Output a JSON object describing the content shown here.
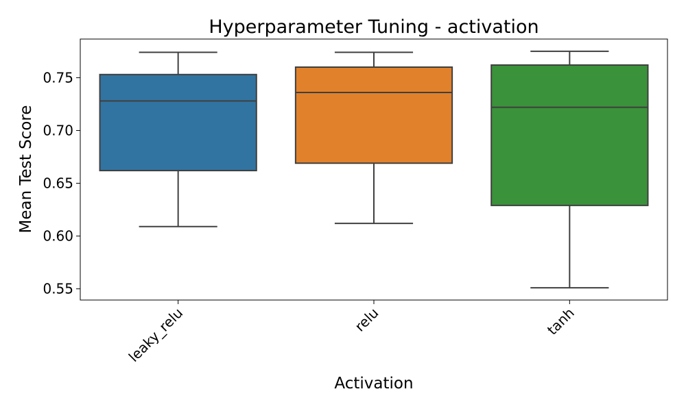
{
  "chart_data": {
    "type": "boxplot",
    "title": "Hyperparameter Tuning - activation",
    "xlabel": "Activation",
    "ylabel": "Mean Test Score",
    "categories": [
      "leaky_relu",
      "relu",
      "tanh"
    ],
    "boxes": [
      {
        "category": "leaky_relu",
        "whisker_low": 0.609,
        "q1": 0.662,
        "median": 0.728,
        "q3": 0.753,
        "whisker_high": 0.774,
        "color": "#3274a1"
      },
      {
        "category": "relu",
        "whisker_low": 0.612,
        "q1": 0.669,
        "median": 0.736,
        "q3": 0.76,
        "whisker_high": 0.774,
        "color": "#e1812c"
      },
      {
        "category": "tanh",
        "whisker_low": 0.551,
        "q1": 0.629,
        "median": 0.722,
        "q3": 0.762,
        "whisker_high": 0.775,
        "color": "#3a923a"
      }
    ],
    "yticks": [
      0.55,
      0.6,
      0.65,
      0.7,
      0.75
    ],
    "ytick_labels": [
      "0.55",
      "0.60",
      "0.65",
      "0.70",
      "0.75"
    ],
    "ylim": [
      0.5394,
      0.7866
    ],
    "grid": false,
    "legend": "none"
  }
}
